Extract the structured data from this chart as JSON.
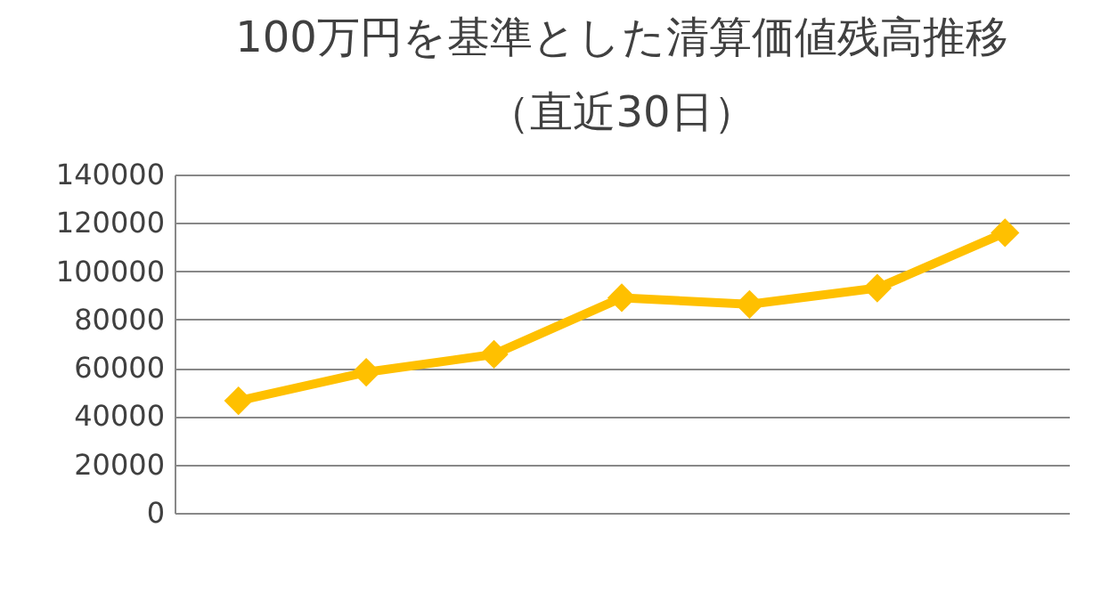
{
  "chart_data": {
    "type": "line",
    "title": [
      "100万円を基準とした清算価値残高推移",
      "（直近30日）"
    ],
    "categories": [
      null,
      null,
      null,
      null,
      null,
      null,
      null
    ],
    "series": [
      {
        "color": "#ffc000",
        "values": [
          46400,
          58200,
          65600,
          89000,
          86300,
          93000,
          115900
        ]
      }
    ],
    "ylim": [
      0,
      140000
    ],
    "yticks": [
      0,
      20000,
      40000,
      60000,
      80000,
      100000,
      120000,
      140000
    ],
    "grid": "y",
    "marker": "diamond",
    "line_style": "solid",
    "tick_labels": "y",
    "legend": false
  }
}
